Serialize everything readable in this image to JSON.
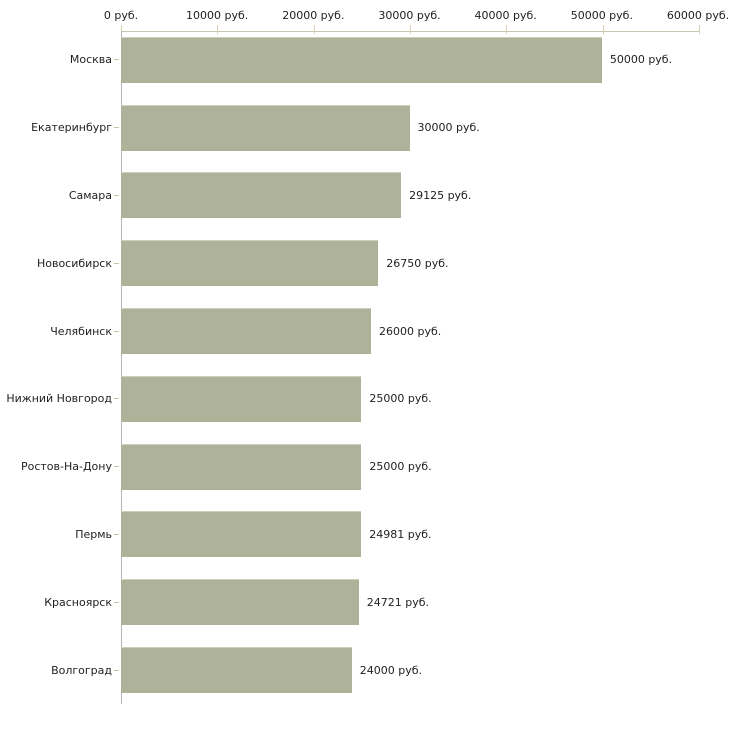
{
  "page": {
    "background": "#ffffff"
  },
  "chart_data": {
    "type": "bar",
    "orientation": "horizontal",
    "title": "",
    "xlabel": "",
    "ylabel": "",
    "unit": "руб.",
    "xlim": [
      0,
      60000
    ],
    "grid": false,
    "legend": null,
    "x_tick_values": [
      0,
      10000,
      20000,
      30000,
      40000,
      50000,
      60000
    ],
    "x_tick_labels": [
      "0 руб.",
      "10000 руб.",
      "20000 руб.",
      "30000 руб.",
      "40000 руб.",
      "50000 руб.",
      "60000 руб."
    ],
    "categories": [
      "Москва",
      "Екатеринбург",
      "Самара",
      "Новосибирск",
      "Челябинск",
      "Нижний Новгород",
      "Ростов-На-Дону",
      "Пермь",
      "Красноярск",
      "Волгоград"
    ],
    "values": [
      50000,
      30000,
      29125,
      26750,
      26000,
      25000,
      25000,
      24981,
      24721,
      24000
    ],
    "value_labels": [
      "50000 руб.",
      "30000 руб.",
      "29125 руб.",
      "26750 руб.",
      "26000 руб.",
      "25000 руб.",
      "25000 руб.",
      "24981 руб.",
      "24721 руб.",
      "24000 руб."
    ],
    "colors": {
      "bar_fill": "#adb298",
      "bar_edge": "#cdd0bd",
      "x_axis_line": "#c9c5aa",
      "y_axis_line": "#b4b4b4",
      "tick_mark": "#d6d2b6",
      "text": "#1f1f1f",
      "background": "#ffffff"
    }
  }
}
